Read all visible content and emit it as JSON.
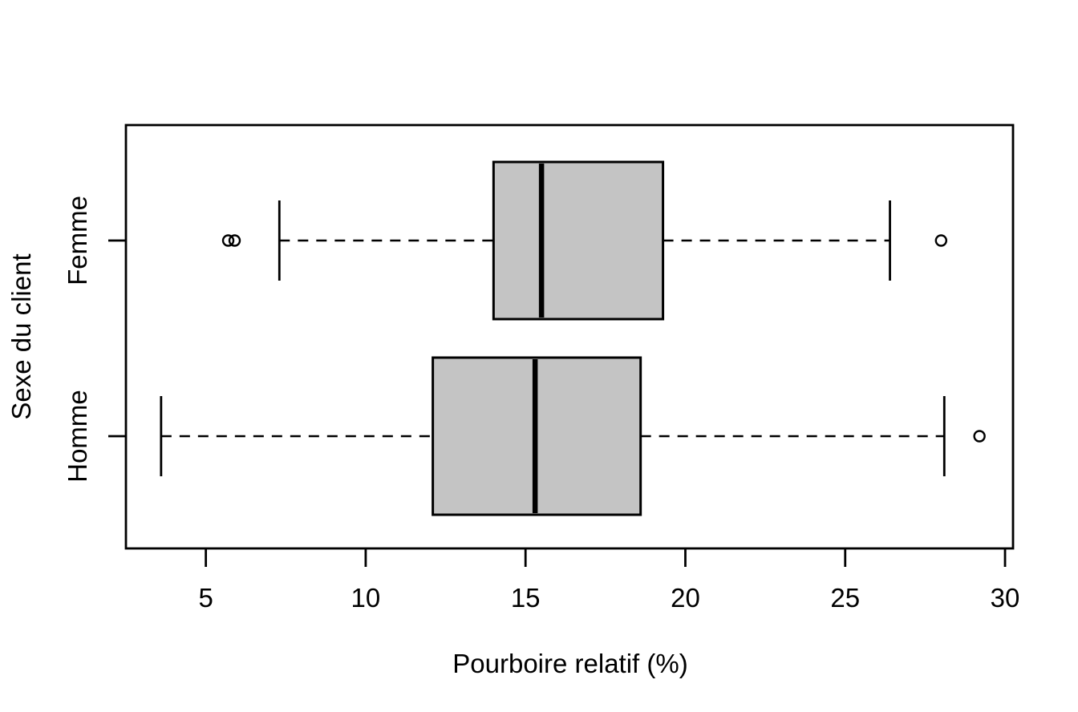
{
  "figure": {
    "background_color": "#ffffff",
    "foreground_color": "#000000",
    "box_fill_color": "#c4c4c4"
  },
  "chart_data": {
    "type": "boxplot",
    "orientation": "horizontal",
    "title": "",
    "xlabel": "Pourboire relatif (%)",
    "ylabel": "Sexe du client",
    "categories": [
      "Femme",
      "Homme"
    ],
    "xlim": [
      2.5,
      30.25
    ],
    "xticks": [
      5,
      10,
      15,
      20,
      25,
      30
    ],
    "grid": "off",
    "legend": "none",
    "series": [
      {
        "name": "Femme",
        "whisker_low": 7.3,
        "q1": 14.0,
        "median": 15.5,
        "q3": 19.3,
        "whisker_high": 26.4,
        "outliers": [
          5.7,
          5.9,
          28.0
        ]
      },
      {
        "name": "Homme",
        "whisker_low": 3.6,
        "q1": 12.1,
        "median": 15.3,
        "q3": 18.6,
        "whisker_high": 28.1,
        "outliers": [
          29.2
        ]
      }
    ]
  }
}
